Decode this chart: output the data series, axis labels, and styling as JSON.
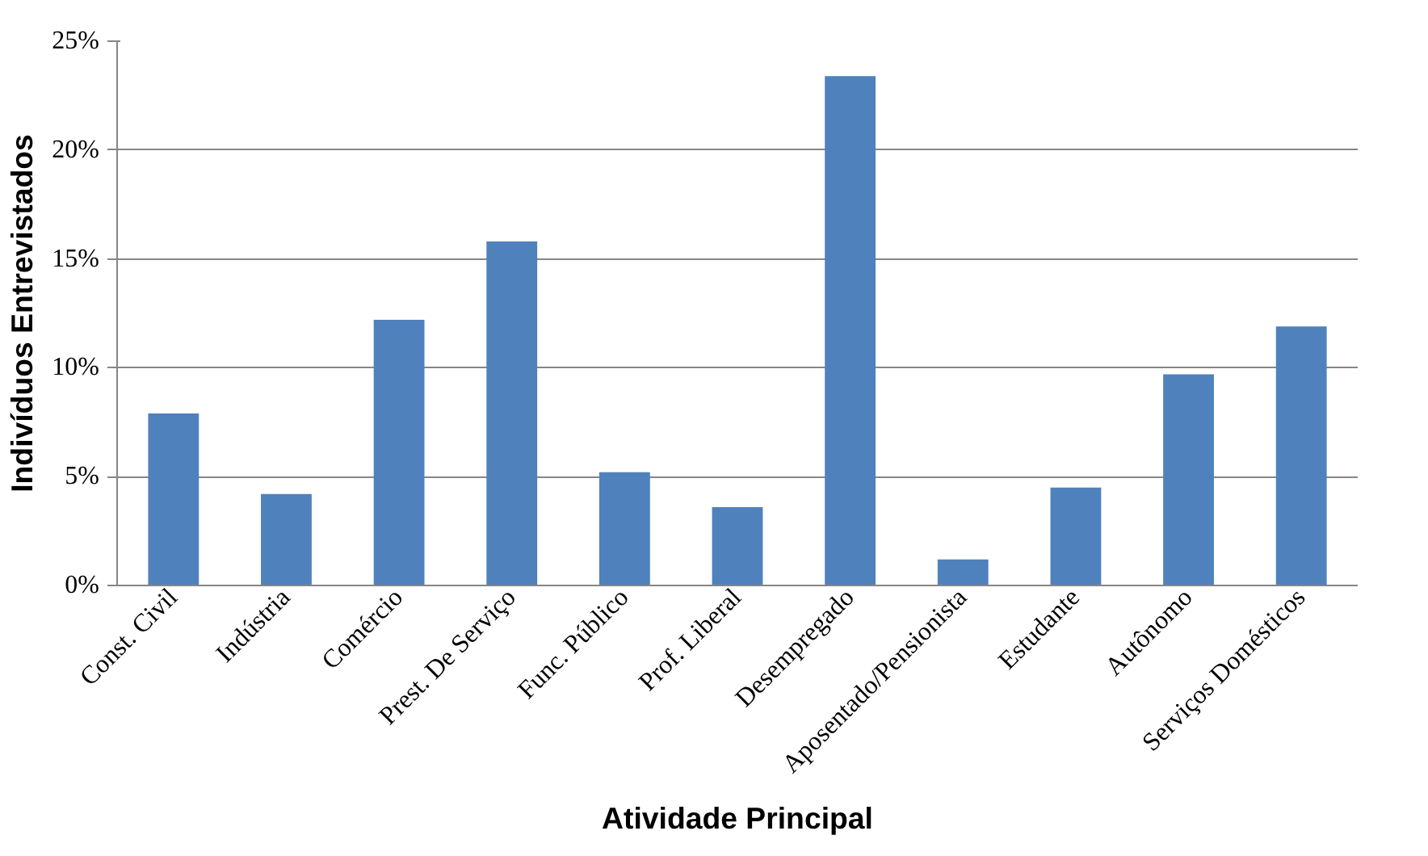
{
  "chart_data": {
    "type": "bar",
    "xlabel": "Atividade Principal",
    "ylabel": "Indivíduos Entrevistados",
    "categories": [
      "Const. Civil",
      "Indústria",
      "Comércio",
      "Prest. De Serviço",
      "Func. Público",
      "Prof. Liberal",
      "Desempregado",
      "Aposentado/Pensionista",
      "Estudante",
      "Autônomo",
      "Serviços Domésticos"
    ],
    "series": [
      {
        "color": "#4f81bd",
        "values": [
          7.9,
          4.2,
          12.2,
          15.8,
          5.2,
          3.6,
          23.4,
          1.2,
          4.5,
          9.7,
          11.9
        ]
      }
    ],
    "ylim": [
      0,
      25
    ],
    "yticks": [
      {
        "value": 0,
        "label": "0%"
      },
      {
        "value": 5,
        "label": "5%"
      },
      {
        "value": 10,
        "label": "10%"
      },
      {
        "value": 15,
        "label": "15%"
      },
      {
        "value": 20,
        "label": "20%"
      },
      {
        "value": 25,
        "label": "25%"
      }
    ],
    "grid": "y"
  }
}
